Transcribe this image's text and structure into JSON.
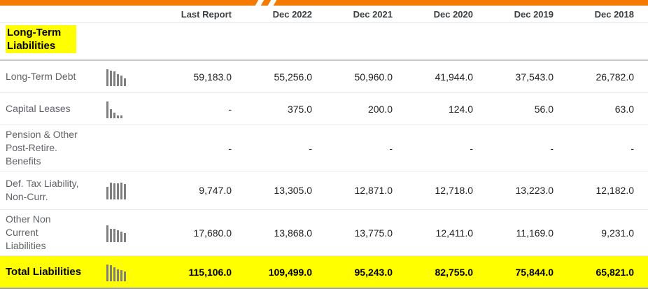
{
  "header": {
    "columns": [
      "Last Report",
      "Dec 2022",
      "Dec 2021",
      "Dec 2020",
      "Dec 2019",
      "Dec 2018"
    ]
  },
  "section": {
    "title": "Long-Term\nLiabilities"
  },
  "rows": [
    {
      "label": "Long-Term Debt",
      "sparkline": [
        59183,
        55256,
        50960,
        41944,
        37543,
        26782
      ],
      "values": [
        "59,183.0",
        "55,256.0",
        "50,960.0",
        "41,944.0",
        "37,543.0",
        "26,782.0"
      ]
    },
    {
      "label": "Capital Leases",
      "sparkline": [
        375,
        200,
        124,
        56,
        63
      ],
      "values": [
        "-",
        "375.0",
        "200.0",
        "124.0",
        "56.0",
        "63.0"
      ]
    },
    {
      "label": "Pension & Other\nPost-Retire.\nBenefits",
      "sparkline": [],
      "values": [
        "-",
        "-",
        "-",
        "-",
        "-",
        "-"
      ]
    },
    {
      "label": "Def. Tax Liability,\nNon-Curr.",
      "sparkline": [
        9747,
        13305,
        12871,
        12718,
        13223,
        12182
      ],
      "values": [
        "9,747.0",
        "13,305.0",
        "12,871.0",
        "12,718.0",
        "13,223.0",
        "12,182.0"
      ]
    },
    {
      "label": "Other Non\nCurrent\nLiabilities",
      "sparkline": [
        17680,
        13868,
        13775,
        12411,
        11169,
        9231
      ],
      "values": [
        "17,680.0",
        "13,868.0",
        "13,775.0",
        "12,411.0",
        "11,169.0",
        "9,231.0"
      ]
    }
  ],
  "total_row": {
    "label": "Total Liabilities",
    "sparkline": [
      115106,
      109499,
      95243,
      82755,
      75844,
      65821
    ],
    "values": [
      "115,106.0",
      "109,499.0",
      "95,243.0",
      "82,755.0",
      "75,844.0",
      "65,821.0"
    ]
  },
  "colors": {
    "accent_orange": "#f57a00",
    "highlight_yellow": "#ffff00",
    "sparkline_gray": "#7f7f7f"
  }
}
